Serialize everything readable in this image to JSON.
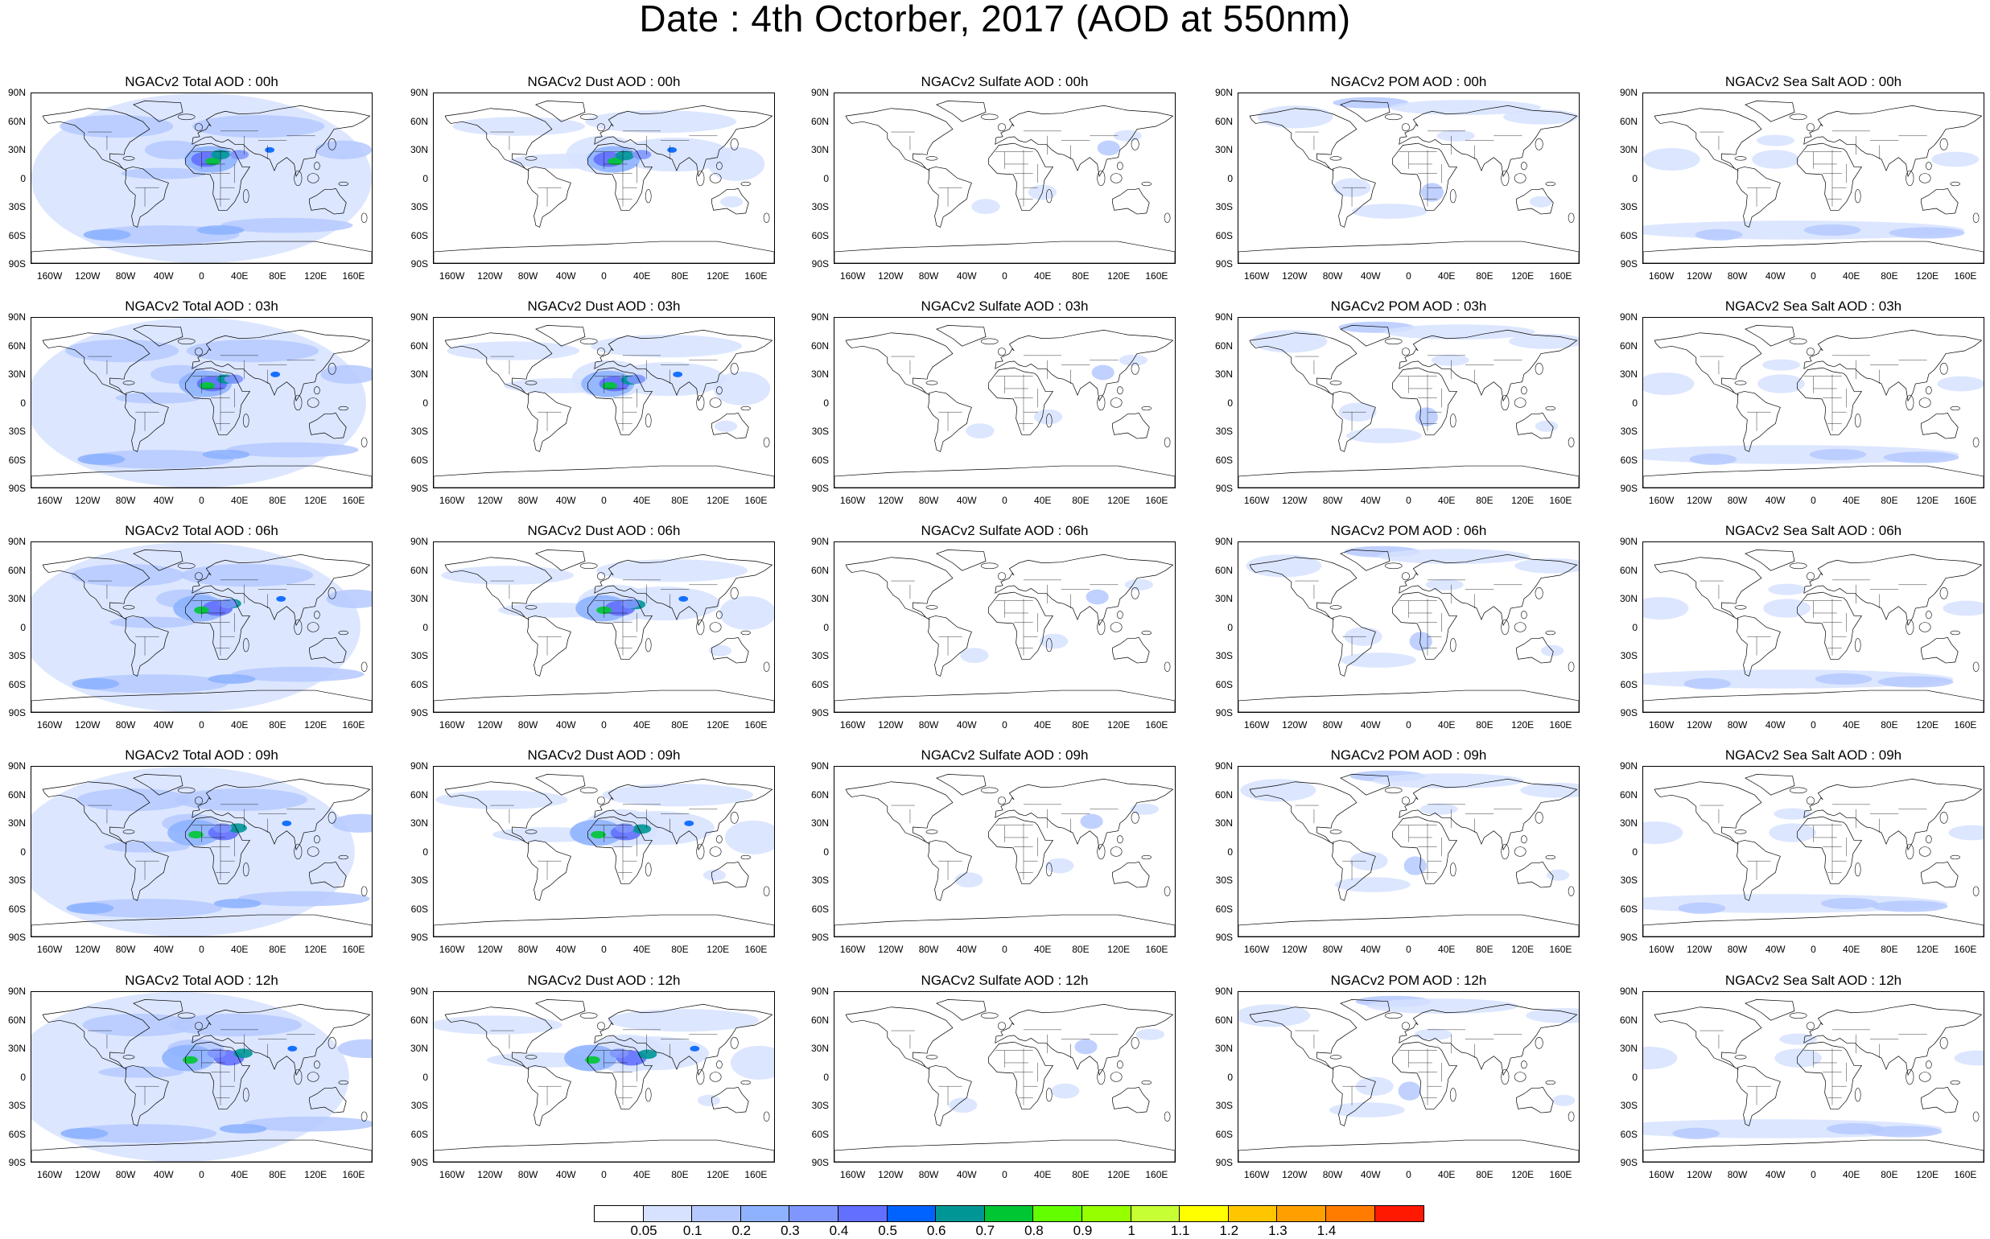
{
  "title": "Date : 4th Octorber, 2017 (AOD at 550nm)",
  "lat_labels": [
    "90N",
    "60N",
    "30N",
    "0",
    "30S",
    "60S",
    "90S"
  ],
  "lon_labels": [
    "160W",
    "120W",
    "80W",
    "40W",
    "0",
    "40E",
    "80E",
    "120E",
    "160E"
  ],
  "panels": [
    [
      "NGACv2 Total AOD : 00h",
      "NGACv2 Dust AOD : 00h",
      "NGACv2 Sulfate AOD : 00h",
      "NGACv2 POM AOD : 00h",
      "NGACv2 Sea Salt AOD : 00h"
    ],
    [
      "NGACv2 Total AOD : 03h",
      "NGACv2 Dust AOD : 03h",
      "NGACv2 Sulfate AOD : 03h",
      "NGACv2 POM AOD : 03h",
      "NGACv2 Sea Salt AOD : 03h"
    ],
    [
      "NGACv2 Total AOD : 06h",
      "NGACv2 Dust AOD : 06h",
      "NGACv2 Sulfate AOD : 06h",
      "NGACv2 POM AOD : 06h",
      "NGACv2 Sea Salt AOD : 06h"
    ],
    [
      "NGACv2 Total AOD : 09h",
      "NGACv2 Dust AOD : 09h",
      "NGACv2 Sulfate AOD : 09h",
      "NGACv2 POM AOD : 09h",
      "NGACv2 Sea Salt  AOD : 09h"
    ],
    [
      "NGACv2 Total AOD :  12h",
      "NGACv2 Dust AOD : 12h",
      "NGACv2 Sulfate AOD : 12h",
      "NGACv2 POM  AOD : 12h",
      "NGACv2 Sea Salt  AOD : 12h"
    ]
  ],
  "colorbar": {
    "colors": [
      "#ffffff",
      "#d6e2ff",
      "#b5c9ff",
      "#8eb2ff",
      "#7f96ff",
      "#6370ff",
      "#0063ff",
      "#009696",
      "#00c633",
      "#63ff00",
      "#96ff00",
      "#c6ff33",
      "#ffff00",
      "#ffc600",
      "#ffa000",
      "#ff7c00",
      "#ff1900"
    ],
    "labels": [
      "0.05",
      "0.1",
      "0.2",
      "0.3",
      "0.4",
      "0.5",
      "0.6",
      "0.7",
      "0.8",
      "0.9",
      "1",
      "1.1",
      "1.2",
      "1.3",
      "1.4"
    ]
  }
}
